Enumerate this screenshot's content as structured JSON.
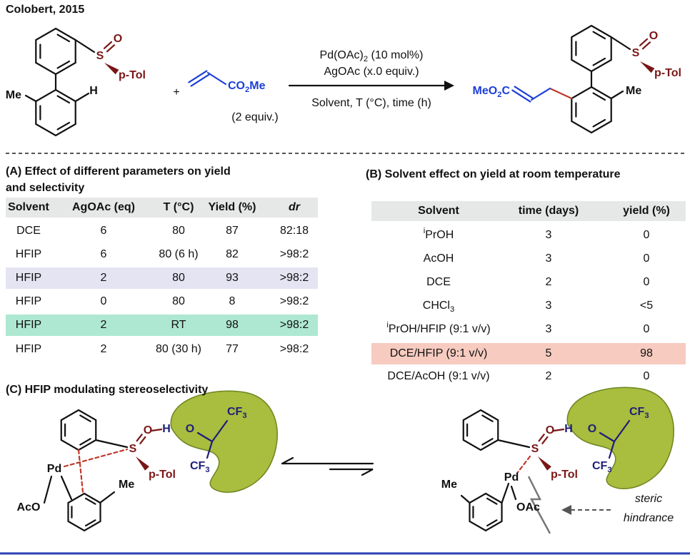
{
  "header": {
    "title": "Colobert, 2015"
  },
  "scheme": {
    "reactant": {
      "s": "S",
      "o": "O",
      "tol": "p-Tol",
      "me": "Me",
      "h": "H"
    },
    "plus": "+",
    "acrylate": {
      "ester": [
        "CO",
        {
          "sub": "2"
        },
        "Me"
      ],
      "equiv": "(2 equiv.)"
    },
    "conditions": {
      "catalyst": [
        "Pd(OAc)",
        {
          "sub": "2"
        },
        " (10 mol%)"
      ],
      "oxidant": "AgOAc (x.0 equiv.)",
      "variables": "Solvent, T (°C), time (h)"
    },
    "product": {
      "ester": [
        "MeO",
        {
          "sub": "2"
        },
        "C"
      ],
      "s": "S",
      "o": "O",
      "tol": "p-Tol",
      "me": "Me"
    }
  },
  "table_a": {
    "title": [
      "(A) Effect of different parameters on yield",
      "and selectivity"
    ],
    "columns": [
      "Solvent",
      "AgOAc (eq)",
      "T (°C)",
      "Yield (%)",
      "dr"
    ],
    "rows": [
      [
        "DCE",
        "6",
        "80",
        "87",
        "82:18"
      ],
      [
        "HFIP",
        "6",
        "80 (6 h)",
        "82",
        ">98:2"
      ],
      [
        "HFIP",
        "2",
        "80",
        "93",
        ">98:2"
      ],
      [
        "HFIP",
        "0",
        "80",
        "8",
        ">98:2"
      ],
      [
        "HFIP",
        "2",
        "RT",
        "98",
        ">98:2"
      ],
      [
        "HFIP",
        "2",
        "80 (30 h)",
        "77",
        ">98:2"
      ]
    ]
  },
  "table_b": {
    "title": "(B) Solvent effect on yield at room temperature",
    "columns": [
      "Solvent",
      "time (days)",
      "yield (%)"
    ],
    "rows": [
      [
        [
          {
            "sup": "i"
          },
          "PrOH"
        ],
        "3",
        "0"
      ],
      [
        "AcOH",
        "3",
        "0"
      ],
      [
        "DCE",
        "2",
        "0"
      ],
      [
        [
          "CHCl",
          {
            "sub": "3"
          }
        ],
        "3",
        "<5"
      ],
      [
        [
          {
            "sup": "i"
          },
          "PrOH/HFIP (9:1 v/v)"
        ],
        "3",
        "0"
      ],
      [
        "DCE/HFIP (9:1 v/v)",
        "5",
        "98"
      ],
      [
        "DCE/AcOH (9:1 v/v)",
        "2",
        "0"
      ]
    ]
  },
  "section_c": {
    "title": "(C) HFIP modulating stereoselectivity",
    "left": {
      "pd": "Pd",
      "aco": "AcO",
      "me": "Me",
      "s": "S",
      "o": "O",
      "h": "H",
      "o2": "O",
      "cf3a": [
        "CF",
        {
          "sub": "3"
        }
      ],
      "cf3b": [
        "CF",
        {
          "sub": "3"
        }
      ],
      "tol": "p-Tol"
    },
    "right": {
      "pd": "Pd",
      "oac": "OAc",
      "me": "Me",
      "s": "S",
      "o": "O",
      "h": "H",
      "o2": "O",
      "cf3a": [
        "CF",
        {
          "sub": "3"
        }
      ],
      "cf3b": [
        "CF",
        {
          "sub": "3"
        }
      ],
      "tol": "p-Tol",
      "steric": "steric",
      "hindrance": "hindrance"
    }
  }
}
